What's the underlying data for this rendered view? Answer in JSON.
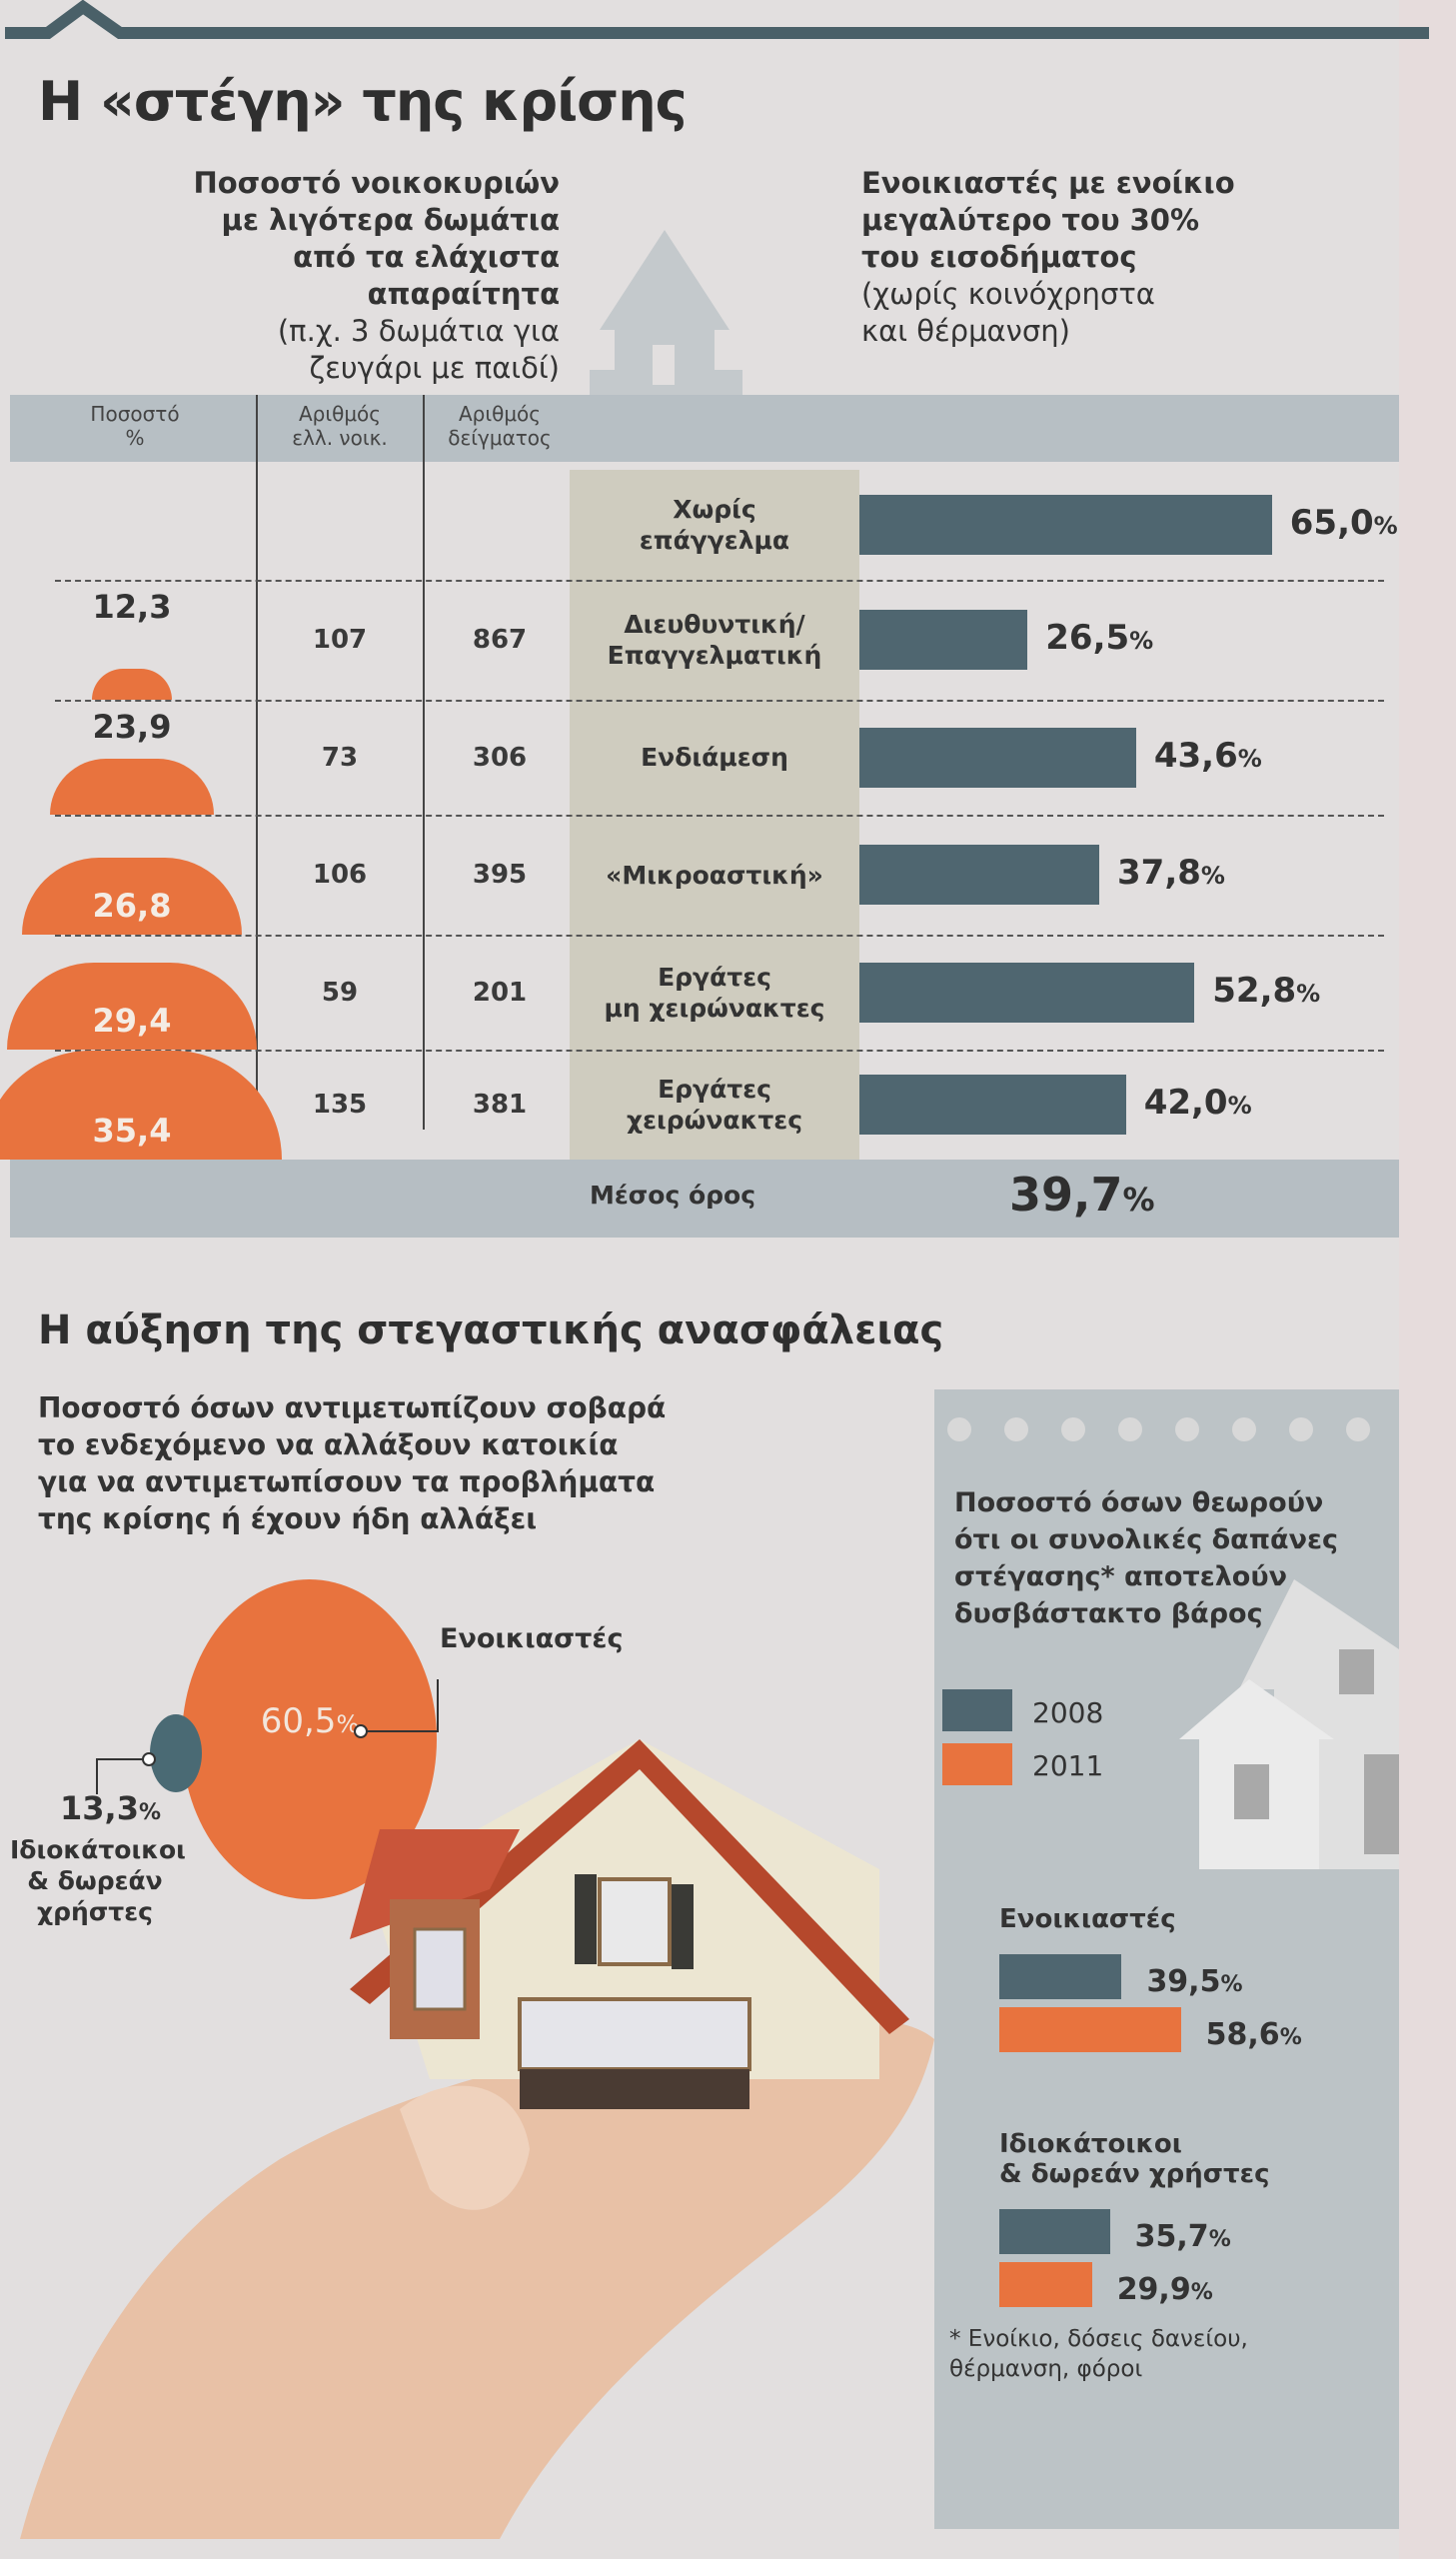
{
  "colors": {
    "dark_bar": "#4f6670",
    "orange": "#e8733e",
    "header_band": "#b7bfc4",
    "category_band": "#cfccbf",
    "panel": "#bcc3c6"
  },
  "section1": {
    "title": "Η «στέγη» της κρίσης",
    "left_subtitle": [
      "Ποσοστό νοικοκυριών",
      "με λιγότερα δωμάτια",
      "από τα ελάχιστα απαραίτητα"
    ],
    "left_subtitle_note": [
      "(π.χ. 3 δωμάτια για",
      "ζευγάρι με παιδί)"
    ],
    "right_subtitle": [
      "Ενοικιαστές με ενοίκιο",
      "μεγαλύτερο του 30%",
      "του εισοδήματος"
    ],
    "right_subtitle_note": [
      "(χωρίς κοινόχρηστα",
      "και θέρμανση)"
    ],
    "columns": [
      {
        "line1": "Ποσοστό",
        "line2": "%"
      },
      {
        "line1": "Αριθμός",
        "line2": "ελλ. νοικ."
      },
      {
        "line1": "Αριθμός",
        "line2": "δείγματος"
      }
    ],
    "average_label": "Μέσος όρος",
    "average_value": "39,7",
    "pct_sign": "%"
  },
  "chart_data": [
    {
      "type": "table",
      "title": "Ποσοστό νοικοκυριών με λιγότερα δωμάτια από τα ελάχιστα απαραίτητα",
      "categories": [
        "Χωρίς επάγγελμα",
        "Διευθυντική/Επαγγελματική",
        "Ενδιάμεση",
        "«Μικροαστική»",
        "Εργάτες μη χειρώνακτες",
        "Εργάτες χειρώνακτες"
      ],
      "rows": [
        {
          "category": "Χωρίς επάγγελμα",
          "pct": null,
          "households": null,
          "sample": null
        },
        {
          "category": "Διευθυντική/Επαγγελματική",
          "pct": "12,3",
          "households": "107",
          "sample": "867"
        },
        {
          "category": "Ενδιάμεση",
          "pct": "23,9",
          "households": "73",
          "sample": "306"
        },
        {
          "category": "«Μικροαστική»",
          "pct": "26,8",
          "households": "106",
          "sample": "395"
        },
        {
          "category": "Εργάτες μη χειρώνακτες",
          "pct": "29,4",
          "households": "59",
          "sample": "201"
        },
        {
          "category": "Εργάτες χειρώνακτες",
          "pct": "35,4",
          "households": "135",
          "sample": "381"
        }
      ]
    },
    {
      "type": "bar",
      "title": "Ενοικιαστές με ενοίκιο μεγαλύτερο του 30% του εισοδήματος",
      "categories": [
        [
          "Χωρίς",
          "επάγγελμα"
        ],
        [
          "Διευθυντική/",
          "Επαγγελματική"
        ],
        [
          "Ενδιάμεση"
        ],
        [
          "«Μικροαστική»"
        ],
        [
          "Εργάτες",
          "μη χειρώνακτες"
        ],
        [
          "Εργάτες",
          "χειρώνακτες"
        ]
      ],
      "values": [
        65.0,
        26.5,
        43.6,
        37.8,
        52.8,
        42.0
      ],
      "labels": [
        "65,0",
        "26,5",
        "43,6",
        "37,8",
        "52,8",
        "42,0"
      ],
      "average": 39.7,
      "xlim": [
        0,
        70
      ],
      "unit": "%"
    },
    {
      "type": "bubble",
      "title": "Ποσοστό όσων αντιμετωπίζουν σοβαρά το ενδεχόμενο να αλλάξουν κατοικία για να αντιμετωπίσουν τα προβλήματα της κρίσης ή έχουν ήδη αλλάξει",
      "series": [
        {
          "name": "Ενοικιαστές",
          "value": 60.5,
          "label": "60,5"
        },
        {
          "name": "Ιδιοκάτοικοι & δωρεάν χρήστες",
          "value": 13.3,
          "label": "13,3"
        }
      ]
    },
    {
      "type": "bar",
      "title": "Ποσοστό όσων θεωρούν ότι οι συνολικές δαπάνες στέγασης* αποτελούν δυσβάστακτο βάρος",
      "legend": [
        "2008",
        "2011"
      ],
      "legend_position": "top-left",
      "groups": [
        {
          "name": [
            "Ενοικιαστές"
          ],
          "values": [
            39.5,
            58.6
          ],
          "labels": [
            "39,5",
            "58,6"
          ]
        },
        {
          "name": [
            "Ιδιοκάτοικοι",
            "& δωρεάν χρήστες"
          ],
          "values": [
            35.7,
            29.9
          ],
          "labels": [
            "35,7",
            "29,9"
          ]
        }
      ],
      "xlim": [
        0,
        70
      ],
      "unit": "%",
      "footnote": [
        "* Ενοίκιο, δόσεις δανείου,",
        "θέρμανση, φόροι"
      ]
    }
  ],
  "section2": {
    "title": "Η αύξηση της στεγαστικής ανασφάλειας",
    "subtitle": [
      "Ποσοστό όσων αντιμετωπίζουν σοβαρά",
      "το ενδεχόμενο να αλλάξουν κατοικία",
      "για να αντιμετωπίσουν τα προβλήματα",
      "της κρίσης ή έχουν ήδη αλλάξει"
    ],
    "renters_label": "Ενοικιαστές",
    "owners_label": [
      "Ιδιοκάτοικοι",
      "& δωρεάν",
      "χρήστες"
    ],
    "panel_title": [
      "Ποσοστό όσων θεωρούν",
      "ότι οι συνολικές δαπάνες",
      "στέγασης* αποτελούν",
      "δυσβάστακτο βάρος"
    ]
  }
}
